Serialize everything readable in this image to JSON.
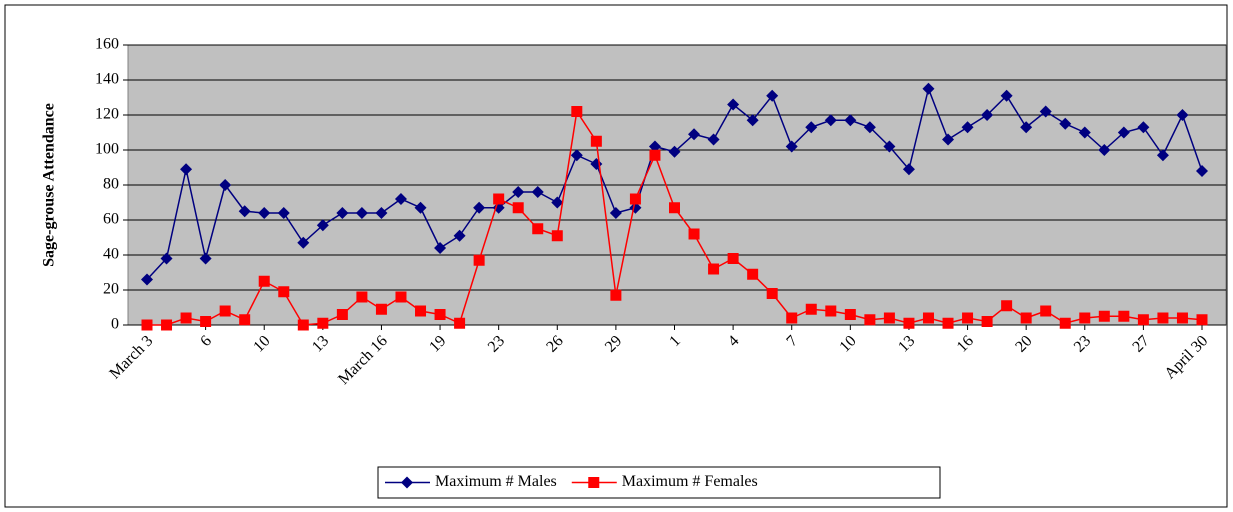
{
  "chart_data": {
    "type": "line",
    "y_label": "Sage-grouse Attendance",
    "categories": [
      "March 3",
      null,
      null,
      "6",
      null,
      null,
      "10",
      null,
      null,
      "13",
      null,
      null,
      "March 16",
      null,
      null,
      "19",
      null,
      null,
      "23",
      null,
      null,
      "26",
      null,
      null,
      "29",
      null,
      null,
      "1",
      null,
      null,
      "4",
      null,
      null,
      "7",
      null,
      null,
      "10",
      null,
      null,
      "13",
      null,
      null,
      "16",
      null,
      null,
      "20",
      null,
      null,
      "23",
      null,
      null,
      "27",
      null,
      null,
      "April 30"
    ],
    "series": [
      {
        "name": "Maximum # Males",
        "color": "#000080",
        "marker": "diamond",
        "values": [
          26,
          38,
          89,
          38,
          80,
          65,
          64,
          64,
          47,
          57,
          64,
          64,
          64,
          72,
          67,
          44,
          51,
          67,
          67,
          76,
          76,
          70,
          97,
          92,
          64,
          67,
          102,
          99,
          109,
          106,
          126,
          117,
          131,
          102,
          113,
          117,
          117,
          113,
          102,
          89,
          135,
          106,
          113,
          120,
          131,
          113,
          122,
          115,
          110,
          100,
          110,
          113,
          97,
          120,
          88
        ]
      },
      {
        "name": "Maximum # Females",
        "color": "#ff0000",
        "marker": "square",
        "values": [
          0,
          0,
          4,
          2,
          8,
          3,
          25,
          19,
          0,
          1,
          6,
          16,
          9,
          16,
          8,
          6,
          1,
          37,
          72,
          67,
          55,
          51,
          122,
          105,
          17,
          72,
          97,
          67,
          52,
          32,
          38,
          29,
          18,
          4,
          9,
          8,
          6,
          3,
          4,
          1,
          4,
          1,
          4,
          2,
          11,
          4,
          8,
          1,
          4,
          5,
          5,
          3,
          4,
          4,
          3
        ]
      }
    ],
    "ylim": [
      0,
      160
    ],
    "yticks": [
      0,
      20,
      40,
      60,
      80,
      100,
      120,
      140,
      160
    ],
    "grid": true,
    "legend": "bottom"
  }
}
